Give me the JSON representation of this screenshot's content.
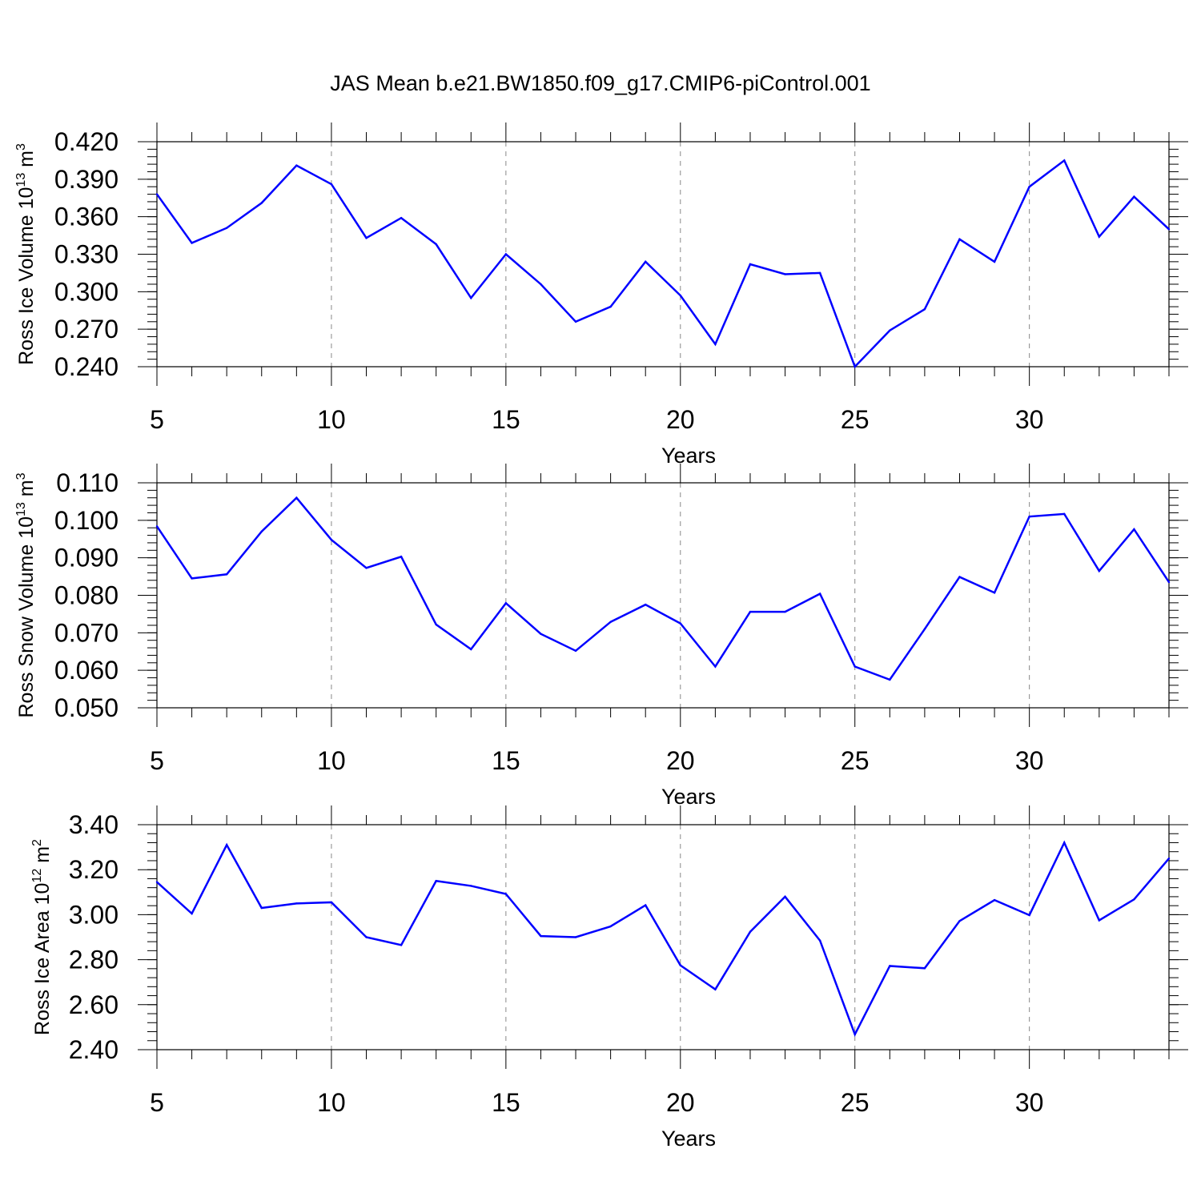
{
  "figure": {
    "title": "JAS Mean b.e21.BW1850.f09_g17.CMIP6-piControl.001"
  },
  "colors": {
    "line": "#0000ff",
    "axis": "#000000",
    "grid": "#888888",
    "background": "#ffffff"
  },
  "chart_data": [
    {
      "type": "line",
      "ylabel_main": "Ross Ice Volume 10",
      "ylabel_exp": "13",
      "ylabel_unit": " m",
      "ylabel_unit_exp": "3",
      "xlabel": "Years",
      "xlim": [
        5,
        34
      ],
      "ylim": [
        0.24,
        0.42
      ],
      "yticks": [
        0.24,
        0.27,
        0.3,
        0.33,
        0.36,
        0.39,
        0.42
      ],
      "ytick_labels": [
        "0.240",
        "0.270",
        "0.300",
        "0.330",
        "0.360",
        "0.390",
        "0.420"
      ],
      "yminor_step": 0.006,
      "xticks": [
        5,
        10,
        15,
        20,
        25,
        30
      ],
      "xtick_labels": [
        "5",
        "10",
        "15",
        "20",
        "25",
        "30"
      ],
      "grid_x": [
        10,
        15,
        20,
        25,
        30
      ],
      "x": [
        5,
        6,
        7,
        8,
        9,
        10,
        11,
        12,
        13,
        14,
        15,
        16,
        17,
        18,
        19,
        20,
        21,
        22,
        23,
        24,
        25,
        26,
        27,
        28,
        29,
        30,
        31,
        32,
        33,
        34
      ],
      "values": [
        0.378,
        0.339,
        0.351,
        0.371,
        0.401,
        0.386,
        0.343,
        0.359,
        0.338,
        0.295,
        0.33,
        0.306,
        0.276,
        0.288,
        0.324,
        0.297,
        0.258,
        0.322,
        0.314,
        0.315,
        0.24,
        0.269,
        0.286,
        0.342,
        0.324,
        0.384,
        0.405,
        0.344,
        0.376,
        0.35
      ]
    },
    {
      "type": "line",
      "ylabel_main": "Ross Snow Volume 10",
      "ylabel_exp": "13",
      "ylabel_unit": " m",
      "ylabel_unit_exp": "3",
      "xlabel": "Years",
      "xlim": [
        5,
        34
      ],
      "ylim": [
        0.05,
        0.11
      ],
      "yticks": [
        0.05,
        0.06,
        0.07,
        0.08,
        0.09,
        0.1,
        0.11
      ],
      "ytick_labels": [
        "0.050",
        "0.060",
        "0.070",
        "0.080",
        "0.090",
        "0.100",
        "0.110"
      ],
      "yminor_step": 0.002,
      "xticks": [
        5,
        10,
        15,
        20,
        25,
        30
      ],
      "xtick_labels": [
        "5",
        "10",
        "15",
        "20",
        "25",
        "30"
      ],
      "grid_x": [
        10,
        15,
        20,
        25,
        30
      ],
      "x": [
        5,
        6,
        7,
        8,
        9,
        10,
        11,
        12,
        13,
        14,
        15,
        16,
        17,
        18,
        19,
        20,
        21,
        22,
        23,
        24,
        25,
        26,
        27,
        28,
        29,
        30,
        31,
        32,
        33,
        34
      ],
      "values": [
        0.0984,
        0.0845,
        0.0856,
        0.097,
        0.106,
        0.0948,
        0.0873,
        0.0903,
        0.0722,
        0.0656,
        0.0779,
        0.0697,
        0.0652,
        0.0729,
        0.0775,
        0.0725,
        0.061,
        0.0756,
        0.0756,
        0.0804,
        0.061,
        0.0575,
        0.071,
        0.0849,
        0.0807,
        0.101,
        0.1017,
        0.0865,
        0.0976,
        0.0835
      ]
    },
    {
      "type": "line",
      "ylabel_main": "Ross Ice Area 10",
      "ylabel_exp": "12",
      "ylabel_unit": " m",
      "ylabel_unit_exp": "2",
      "xlabel": "Years",
      "xlim": [
        5,
        34
      ],
      "ylim": [
        2.4,
        3.4
      ],
      "yticks": [
        2.4,
        2.6,
        2.8,
        3.0,
        3.2,
        3.4
      ],
      "ytick_labels": [
        "2.40",
        "2.60",
        "2.80",
        "3.00",
        "3.20",
        "3.40"
      ],
      "yminor_step": 0.04,
      "xticks": [
        5,
        10,
        15,
        20,
        25,
        30
      ],
      "xtick_labels": [
        "5",
        "10",
        "15",
        "20",
        "25",
        "30"
      ],
      "grid_x": [
        10,
        15,
        20,
        25,
        30
      ],
      "x": [
        5,
        6,
        7,
        8,
        9,
        10,
        11,
        12,
        13,
        14,
        15,
        16,
        17,
        18,
        19,
        20,
        21,
        22,
        23,
        24,
        25,
        26,
        27,
        28,
        29,
        30,
        31,
        32,
        33,
        34
      ],
      "values": [
        3.145,
        3.005,
        3.31,
        3.03,
        3.05,
        3.055,
        2.9,
        2.865,
        3.15,
        3.128,
        3.092,
        2.905,
        2.9,
        2.948,
        3.042,
        2.775,
        2.668,
        2.924,
        3.08,
        2.885,
        2.468,
        2.772,
        2.762,
        2.972,
        3.065,
        2.998,
        3.32,
        2.975,
        3.068,
        3.25
      ]
    }
  ]
}
